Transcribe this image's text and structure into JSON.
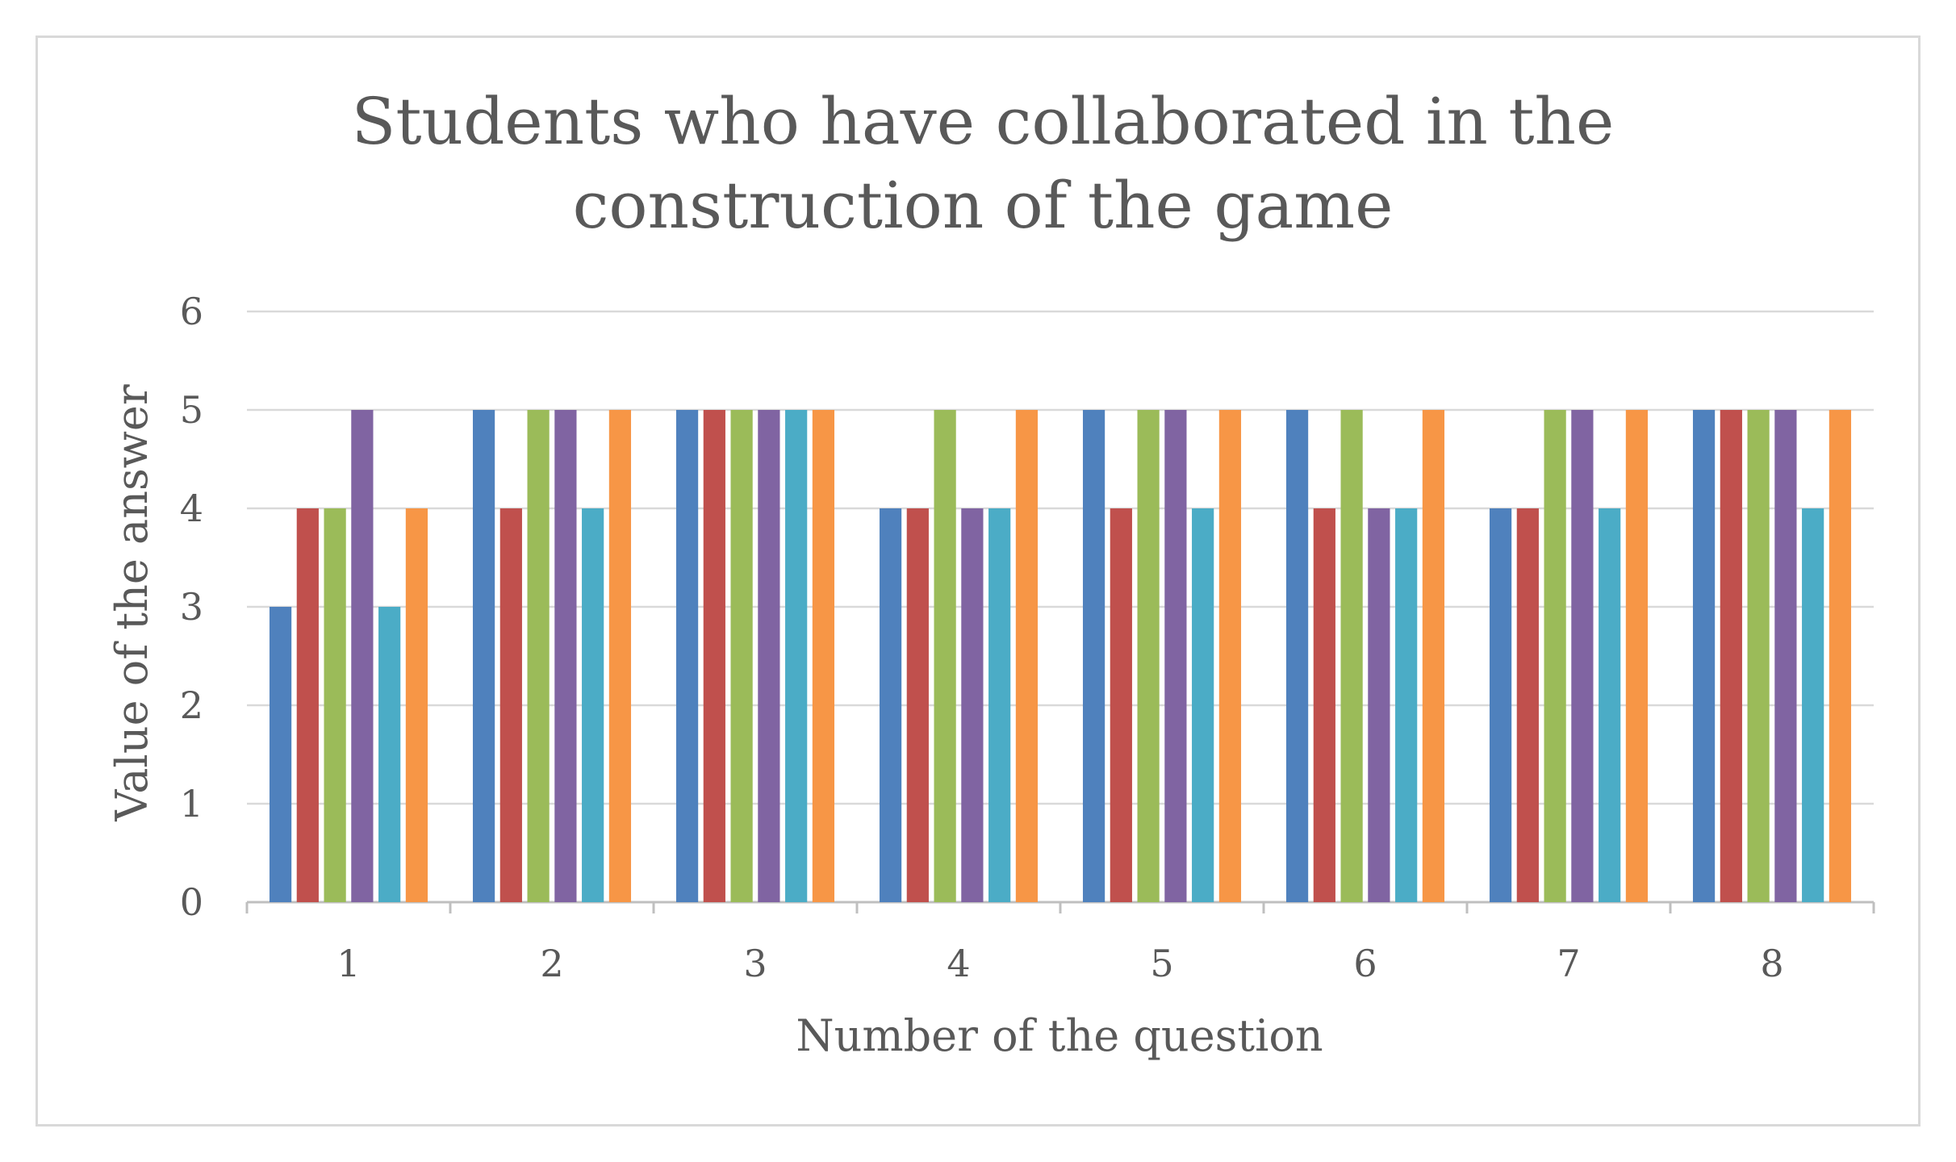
{
  "chart_data": {
    "type": "bar",
    "title_lines": [
      "Students who have collaborated in the",
      "construction of the game"
    ],
    "xlabel": "Number of the question",
    "ylabel": "Value of the answer",
    "categories": [
      "1",
      "2",
      "3",
      "4",
      "5",
      "6",
      "7",
      "8"
    ],
    "yticks": [
      "0",
      "1",
      "2",
      "3",
      "4",
      "5",
      "6"
    ],
    "ylim": [
      0,
      6
    ],
    "grid": true,
    "legend": "none",
    "colors": [
      "#4f81bd",
      "#c0504d",
      "#9bbb59",
      "#8064a2",
      "#4bacc6",
      "#f79646"
    ],
    "series": [
      {
        "values": [
          3,
          5,
          5,
          4,
          5,
          5,
          4,
          5
        ]
      },
      {
        "values": [
          4,
          4,
          5,
          4,
          4,
          4,
          4,
          5
        ]
      },
      {
        "values": [
          4,
          5,
          5,
          5,
          5,
          5,
          5,
          5
        ]
      },
      {
        "values": [
          5,
          5,
          5,
          4,
          5,
          4,
          5,
          5
        ]
      },
      {
        "values": [
          3,
          4,
          5,
          4,
          4,
          4,
          4,
          4
        ]
      },
      {
        "values": [
          4,
          5,
          5,
          5,
          5,
          5,
          5,
          5
        ]
      }
    ]
  }
}
